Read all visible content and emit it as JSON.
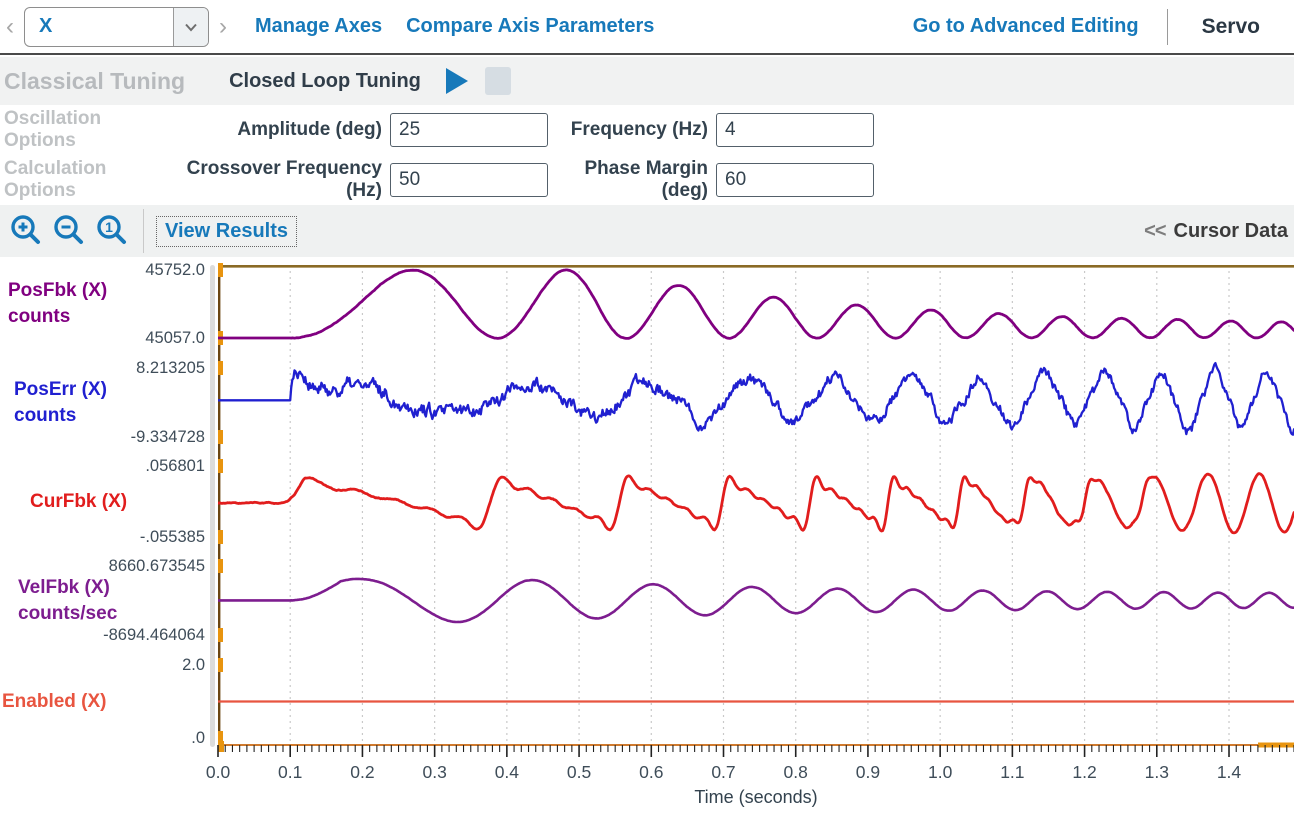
{
  "header": {
    "axis_selector": {
      "value": "X"
    },
    "links": {
      "manage_axes": "Manage Axes",
      "compare_axis_parameters": "Compare Axis Parameters",
      "advanced_editing": "Go to Advanced Editing"
    },
    "mode_label": "Servo"
  },
  "tuning_bar": {
    "title": "Classical Tuning",
    "mode": "Closed Loop Tuning"
  },
  "options": {
    "oscillation": {
      "section_label": "Oscillation Options",
      "fields": [
        {
          "label": "Amplitude (deg)",
          "value": "25"
        },
        {
          "label": "Frequency (Hz)",
          "value": "4"
        }
      ]
    },
    "calculation": {
      "section_label": "Calculation Options",
      "fields": [
        {
          "label": "Crossover Frequency (Hz)",
          "value": "50"
        },
        {
          "label": "Phase Margin (deg)",
          "value": "60"
        }
      ]
    }
  },
  "toolbar": {
    "view_results": "View Results",
    "cursor_data_prefix": "<<",
    "cursor_data": "Cursor Data"
  },
  "colors": {
    "accent_blue": "#1779ba",
    "axis_border_brown": "#8a6a25",
    "left_spine_brown": "#6b4612",
    "bottom_axis_orange": "#cf7a2e",
    "axis_marker_orange": "#e8940f",
    "grid": "#c9c9c9",
    "tick": "#222222",
    "tick_label": "#3f4d59"
  },
  "chart_data": {
    "type": "line",
    "xlabel": "Time (seconds)",
    "x_range": [
      0.0,
      1.49
    ],
    "x_major_tick_step": 0.1,
    "x_minor_tick_step": 0.01,
    "x_tick_labels": [
      "0.0",
      "0.1",
      "0.2",
      "0.3",
      "0.4",
      "0.5",
      "0.6",
      "0.7",
      "0.8",
      "0.9",
      "1.0",
      "1.1",
      "1.2",
      "1.3",
      "1.4"
    ],
    "grid": "vertical-dotted",
    "excitation": {
      "type": "chirp",
      "start_time": 0.1,
      "f0_hz": 2.2,
      "chirp_rate_hz_per_s": 9.0
    },
    "subplots": [
      {
        "name": "PosFbk (X)",
        "units": "counts",
        "color": "#800080",
        "y_max": 45752.0,
        "y_min": 45057.0,
        "y_max_label": "45752.0",
        "y_min_label": "45057.0",
        "seed": 11,
        "signal": {
          "waveform": "chirp-bumps",
          "base": 45057,
          "amp_start": 695,
          "amp_end": 115,
          "noise": 4
        }
      },
      {
        "name": "PosErr (X)",
        "units": "counts",
        "color": "#2020d0",
        "y_max": 8.213205,
        "y_min": -9.334728,
        "y_max_label": "8.213205",
        "y_min_label": "-9.334728",
        "seed": 22,
        "signal": {
          "waveform": "noisy-chirp",
          "base": 0,
          "amp_start": 3.2,
          "amp_end": 7.3,
          "noise": 1.2,
          "onset_spike": 7.5
        }
      },
      {
        "name": "CurFbk (X)",
        "units": "",
        "color": "#e11d1d",
        "y_max": 0.056801,
        "y_min": -0.055385,
        "y_max_label": ".056801",
        "y_min_label": "-.055385",
        "seed": 33,
        "signal": {
          "waveform": "saw-chirp",
          "start_time": 0.09,
          "base": -0.002,
          "amp_start": 0.04,
          "amp_end": 0.046,
          "noise": 0.0012
        }
      },
      {
        "name": "VelFbk (X)",
        "units": "counts/sec",
        "color": "#7d1d8f",
        "y_max": 8660.673545,
        "y_min": -8694.464064,
        "y_max_label": "8660.673545",
        "y_min_label": "-8694.464064",
        "seed": 44,
        "signal": {
          "waveform": "sine-chirp",
          "base": 0,
          "amp_start": 5400,
          "amp_end": 1400,
          "noise": 60
        }
      },
      {
        "name": "Enabled (X)",
        "units": "",
        "color": "#e85540",
        "y_max": 2.0,
        "y_min": 0.0,
        "y_max_label": "2.0",
        "y_min_label": ".0",
        "seed": 55,
        "signal": {
          "waveform": "constant",
          "value": 1.0
        }
      }
    ]
  }
}
